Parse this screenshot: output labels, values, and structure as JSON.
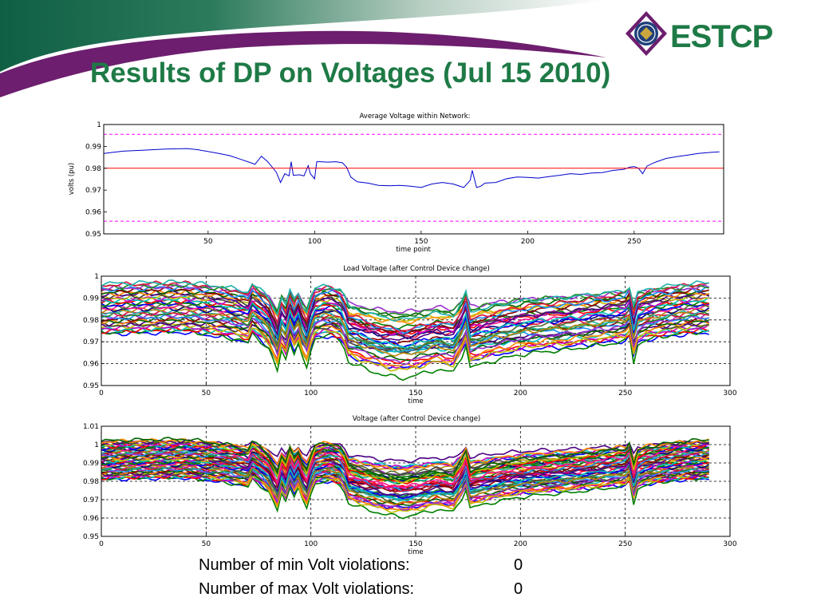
{
  "slide": {
    "title": "Results of DP on Voltages (Jul 15 2010)",
    "logo_text": "ESTCP",
    "colors": {
      "title": "#1e7a46",
      "banner_green": "#14694a",
      "banner_purple": "#6d1e6e",
      "logo_green": "#1e7a46",
      "logo_purple": "#6d1e6e"
    }
  },
  "chart_data": [
    {
      "type": "line",
      "title": "Average Voltage within Network:",
      "xlabel": "time point",
      "ylabel": "volts (pu)",
      "xlim": [
        1,
        292
      ],
      "ylim": [
        0.95,
        1.0
      ],
      "xticks": [
        "50",
        "100",
        "150",
        "200",
        "250"
      ],
      "yticks": [
        "0.95",
        "0.96",
        "0.97",
        "0.98",
        "0.99",
        "1"
      ],
      "grid": false,
      "series": [
        {
          "color": "#0000cc",
          "x": [
            1,
            10,
            20,
            30,
            40,
            45,
            55,
            60,
            65,
            70,
            72,
            75,
            78,
            82,
            84,
            86,
            88,
            89,
            90,
            93,
            95,
            97,
            98,
            100,
            101,
            103,
            106,
            110,
            113,
            115,
            117,
            120,
            125,
            130,
            135,
            140,
            145,
            150,
            155,
            160,
            165,
            170,
            173,
            174,
            176,
            178,
            180,
            185,
            190,
            195,
            200,
            205,
            210,
            215,
            220,
            225,
            230,
            235,
            240,
            245,
            248,
            250,
            252,
            254,
            256,
            260,
            265,
            270,
            275,
            280,
            285,
            290
          ],
          "y": [
            0.9868,
            0.9878,
            0.9883,
            0.9888,
            0.989,
            0.9885,
            0.9868,
            0.9858,
            0.9842,
            0.9825,
            0.9818,
            0.9855,
            0.983,
            0.9782,
            0.9735,
            0.9775,
            0.9765,
            0.983,
            0.9768,
            0.977,
            0.9765,
            0.9812,
            0.9775,
            0.9752,
            0.983,
            0.983,
            0.9828,
            0.983,
            0.9825,
            0.9805,
            0.976,
            0.9738,
            0.9732,
            0.9722,
            0.972,
            0.9722,
            0.9718,
            0.9712,
            0.9728,
            0.9735,
            0.9728,
            0.9712,
            0.9745,
            0.979,
            0.9712,
            0.9718,
            0.9732,
            0.9735,
            0.9752,
            0.976,
            0.9758,
            0.9755,
            0.9762,
            0.9768,
            0.9775,
            0.9772,
            0.9778,
            0.978,
            0.979,
            0.9795,
            0.9805,
            0.9808,
            0.98,
            0.9775,
            0.981,
            0.9828,
            0.9845,
            0.9853,
            0.986,
            0.9868,
            0.9872,
            0.9875
          ]
        },
        {
          "color": "#ff0000",
          "x": [
            1,
            292
          ],
          "y": [
            0.98,
            0.98
          ]
        },
        {
          "color": "#ff00ff",
          "dashed": true,
          "x": [
            1,
            292
          ],
          "y": [
            0.9955,
            0.9955
          ]
        },
        {
          "color": "#ff00ff",
          "dashed": true,
          "x": [
            1,
            292
          ],
          "y": [
            0.9558,
            0.9558
          ]
        }
      ]
    },
    {
      "type": "line",
      "title": "Load Voltage (after Control Device change)",
      "xlabel": "time",
      "ylabel": "",
      "xlim": [
        0,
        300
      ],
      "ylim": [
        0.95,
        1.0
      ],
      "xticks": [
        "0",
        "50",
        "100",
        "150",
        "200",
        "250",
        "300"
      ],
      "yticks": [
        "0.95",
        "0.96",
        "0.97",
        "0.98",
        "0.99",
        "1"
      ],
      "grid": true,
      "x_end": 290,
      "band_center": 0.985,
      "band_spread": 0.0115,
      "series_count": 36,
      "dip_profile_x": [
        0,
        20,
        40,
        60,
        70,
        72,
        75,
        80,
        84,
        86,
        88,
        90,
        92,
        94,
        96,
        98,
        100,
        102,
        106,
        110,
        115,
        118,
        125,
        135,
        145,
        150,
        160,
        168,
        172,
        174,
        176,
        180,
        190,
        200,
        210,
        220,
        230,
        240,
        250,
        252,
        254,
        256,
        260,
        270,
        280,
        290
      ],
      "dip_profile_y": [
        0,
        0.0005,
        0.0008,
        -0.0015,
        -0.0035,
        0.0,
        -0.002,
        -0.006,
        -0.013,
        -0.006,
        -0.009,
        -0.003,
        -0.007,
        -0.004,
        -0.009,
        -0.012,
        -0.006,
        -0.002,
        -0.001,
        -0.001,
        -0.003,
        -0.01,
        -0.012,
        -0.0145,
        -0.0155,
        -0.0145,
        -0.0125,
        -0.0135,
        -0.008,
        -0.004,
        -0.012,
        -0.011,
        -0.009,
        -0.0075,
        -0.0065,
        -0.006,
        -0.005,
        -0.004,
        -0.003,
        -0.001,
        -0.01,
        -0.004,
        -0.0025,
        -0.001,
        0.0,
        0.0005
      ]
    },
    {
      "type": "line",
      "title": "Voltage (after Control Device change)",
      "xlabel": "time",
      "ylabel": "",
      "xlim": [
        0,
        300
      ],
      "ylim": [
        0.95,
        1.01
      ],
      "xticks": [
        "0",
        "50",
        "100",
        "150",
        "200",
        "250",
        "300"
      ],
      "yticks": [
        "0.95",
        "0.96",
        "0.97",
        "0.98",
        "0.99",
        "1",
        "1.01"
      ],
      "grid": true,
      "x_end": 290,
      "band_center": 0.9915,
      "band_spread": 0.0105,
      "series_count": 50,
      "dip_profile_x": [
        0,
        20,
        40,
        60,
        70,
        72,
        75,
        80,
        84,
        86,
        88,
        90,
        92,
        94,
        96,
        98,
        100,
        102,
        106,
        110,
        115,
        118,
        125,
        135,
        145,
        150,
        160,
        168,
        172,
        174,
        176,
        180,
        190,
        200,
        210,
        220,
        230,
        240,
        250,
        252,
        254,
        256,
        260,
        270,
        280,
        290
      ],
      "dip_profile_y": [
        0,
        0.0005,
        0.0008,
        -0.0015,
        -0.0035,
        0.0,
        -0.002,
        -0.006,
        -0.013,
        -0.006,
        -0.009,
        -0.003,
        -0.007,
        -0.004,
        -0.009,
        -0.012,
        -0.006,
        -0.002,
        -0.001,
        -0.001,
        -0.003,
        -0.01,
        -0.012,
        -0.0145,
        -0.0155,
        -0.0145,
        -0.0125,
        -0.0135,
        -0.008,
        -0.004,
        -0.012,
        -0.011,
        -0.009,
        -0.0075,
        -0.0065,
        -0.006,
        -0.005,
        -0.004,
        -0.003,
        -0.001,
        -0.01,
        -0.004,
        -0.0025,
        -0.001,
        0.0,
        0.0005
      ]
    }
  ],
  "footer": {
    "min_label": "Number of min Volt violations:",
    "min_value": "0",
    "max_label": "Number of max Volt violations:",
    "max_value": "0"
  }
}
